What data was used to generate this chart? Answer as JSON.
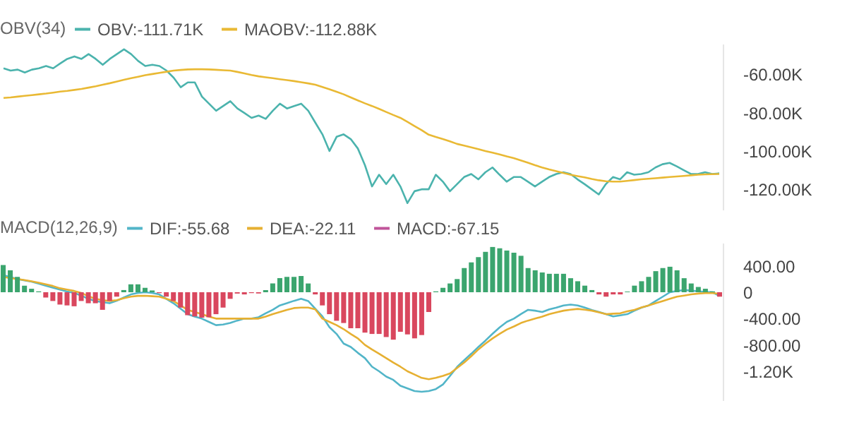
{
  "chart_data": [
    {
      "type": "line",
      "legend_title": "OBV(34)",
      "legend": "top left",
      "tick_labels": "y",
      "grid": false,
      "line_style": "solid",
      "categories": [
        null,
        null,
        null,
        null,
        null,
        null,
        null,
        null,
        null,
        null,
        null,
        null,
        null,
        null,
        null,
        null,
        null,
        null,
        null,
        null,
        null,
        null,
        null,
        null,
        null,
        null,
        null,
        null,
        null,
        null,
        null,
        null,
        null,
        null,
        null,
        null,
        null,
        null,
        null,
        null,
        null,
        null,
        null,
        null,
        null,
        null,
        null,
        null,
        null,
        null,
        null,
        null,
        null,
        null,
        null,
        null,
        null,
        null,
        null,
        null,
        null,
        null,
        null,
        null,
        null,
        null,
        null,
        null,
        null,
        null,
        null,
        null,
        null,
        null,
        null,
        null,
        null,
        null,
        null,
        null,
        null,
        null,
        null,
        null,
        null,
        null,
        null,
        null,
        null,
        null,
        null,
        null,
        null,
        null,
        null,
        null,
        null,
        null,
        null,
        null,
        null,
        null
      ],
      "ylim": [
        -131000,
        -44000
      ],
      "yticks": [
        {
          "value": -60000,
          "label": "-60.00K"
        },
        {
          "value": -80000,
          "label": "-80.00K"
        },
        {
          "value": -100000,
          "label": "-100.00K"
        },
        {
          "value": -120000,
          "label": "-120.00K"
        }
      ],
      "series": [
        {
          "name": "OBV:-111.71K",
          "color": "#4bb3ad",
          "values": [
            -56800,
            -58000,
            -57500,
            -59000,
            -57500,
            -56800,
            -55600,
            -56800,
            -54300,
            -51900,
            -50600,
            -51900,
            -49400,
            -51900,
            -55000,
            -51900,
            -49400,
            -46900,
            -49400,
            -53000,
            -55600,
            -55000,
            -55600,
            -58000,
            -61700,
            -66700,
            -64200,
            -64200,
            -71600,
            -75300,
            -79000,
            -76500,
            -74000,
            -77800,
            -80200,
            -82700,
            -81500,
            -83200,
            -79000,
            -75300,
            -77800,
            -76500,
            -75300,
            -79000,
            -85200,
            -91300,
            -100000,
            -92600,
            -91300,
            -93800,
            -98700,
            -107400,
            -118500,
            -112400,
            -117300,
            -112400,
            -118500,
            -127200,
            -121000,
            -120000,
            -120000,
            -112400,
            -116000,
            -121000,
            -117300,
            -113600,
            -112000,
            -114800,
            -111100,
            -108600,
            -112400,
            -116000,
            -113600,
            -113600,
            -116000,
            -118500,
            -116000,
            -113600,
            -112000,
            -111100,
            -112000,
            -114800,
            -117300,
            -120000,
            -122700,
            -117300,
            -113600,
            -114800,
            -111100,
            -112400,
            -112000,
            -111100,
            -108600,
            -106900,
            -106200,
            -108000,
            -110000,
            -112000,
            -112000,
            -111100,
            -112000,
            -111700
          ]
        },
        {
          "name": "MAOBV:-112.88K",
          "color": "#e9b934",
          "values": [
            -72300,
            -72000,
            -71600,
            -71200,
            -70800,
            -70400,
            -70000,
            -69500,
            -69000,
            -68600,
            -68100,
            -67600,
            -66900,
            -66200,
            -65400,
            -64600,
            -63700,
            -62800,
            -62000,
            -61200,
            -60400,
            -59800,
            -59200,
            -58600,
            -58000,
            -57700,
            -57400,
            -57300,
            -57300,
            -57400,
            -57600,
            -57800,
            -58000,
            -58700,
            -59500,
            -60300,
            -61000,
            -61500,
            -62000,
            -62500,
            -63000,
            -63500,
            -64100,
            -64700,
            -65400,
            -66600,
            -67800,
            -69100,
            -70400,
            -72000,
            -73600,
            -75100,
            -76500,
            -78000,
            -79600,
            -81200,
            -82700,
            -84800,
            -87000,
            -89100,
            -91500,
            -92700,
            -93800,
            -95000,
            -96300,
            -97200,
            -98100,
            -99000,
            -100000,
            -100900,
            -101800,
            -102800,
            -103700,
            -104900,
            -106100,
            -107400,
            -108600,
            -109600,
            -110500,
            -111500,
            -112400,
            -113100,
            -113800,
            -114600,
            -115300,
            -115800,
            -116000,
            -116000,
            -115600,
            -115200,
            -114800,
            -114500,
            -114200,
            -113900,
            -113600,
            -113300,
            -113000,
            -112700,
            -112400,
            -112200,
            -112100,
            -112000
          ]
        }
      ]
    },
    {
      "type": "bar",
      "legend_title": "MACD(12,26,9)",
      "legend": "top left",
      "tick_labels": "y",
      "grid": false,
      "line_style": "solid",
      "categories": [
        null,
        null,
        null,
        null,
        null,
        null,
        null,
        null,
        null,
        null,
        null,
        null,
        null,
        null,
        null,
        null,
        null,
        null,
        null,
        null,
        null,
        null,
        null,
        null,
        null,
        null,
        null,
        null,
        null,
        null,
        null,
        null,
        null,
        null,
        null,
        null,
        null,
        null,
        null,
        null,
        null,
        null,
        null,
        null,
        null,
        null,
        null,
        null,
        null,
        null,
        null,
        null,
        null,
        null,
        null,
        null,
        null,
        null,
        null,
        null,
        null,
        null,
        null,
        null,
        null,
        null,
        null,
        null,
        null,
        null,
        null,
        null,
        null,
        null,
        null,
        null,
        null,
        null,
        null,
        null,
        null,
        null,
        null,
        null,
        null,
        null,
        null,
        null,
        null,
        null,
        null,
        null,
        null,
        null,
        null,
        null,
        null,
        null,
        null,
        null,
        null,
        null
      ],
      "ylim": [
        -1650,
        750
      ],
      "yticks": [
        {
          "value": 400,
          "label": "400.00"
        },
        0,
        {
          "value": -400,
          "label": "-400.00"
        },
        {
          "value": -800,
          "label": "-800.00"
        },
        {
          "value": -1200,
          "label": "-1.20K"
        }
      ],
      "series": [
        {
          "name": "DIF:-55.68",
          "type": "line",
          "color": "#52b5c8",
          "values": [
            260,
            230,
            200,
            180,
            160,
            130,
            100,
            70,
            40,
            10,
            -10,
            -50,
            -100,
            -133,
            -150,
            -167,
            -130,
            -80,
            -33,
            -10,
            0,
            -10,
            -33,
            -100,
            -167,
            -250,
            -333,
            -370,
            -400,
            -450,
            -500,
            -490,
            -467,
            -430,
            -400,
            -400,
            -380,
            -320,
            -267,
            -200,
            -167,
            -130,
            -100,
            -133,
            -250,
            -367,
            -530,
            -633,
            -780,
            -830,
            -920,
            -1000,
            -1130,
            -1200,
            -1280,
            -1330,
            -1420,
            -1460,
            -1500,
            -1510,
            -1500,
            -1470,
            -1400,
            -1270,
            -1133,
            -1030,
            -933,
            -830,
            -733,
            -630,
            -533,
            -450,
            -400,
            -330,
            -267,
            -280,
            -300,
            -260,
            -233,
            -200,
            -187,
            -200,
            -233,
            -270,
            -300,
            -333,
            -367,
            -350,
            -333,
            -280,
            -233,
            -200,
            -133,
            -67,
            0,
            20,
            33,
            25,
            13,
            5,
            0,
            -56
          ]
        },
        {
          "name": "DEA:-22.11",
          "type": "line",
          "color": "#e6b032",
          "values": [
            233,
            215,
            200,
            185,
            167,
            145,
            120,
            95,
            60,
            40,
            20,
            -10,
            -60,
            -100,
            -120,
            -133,
            -120,
            -90,
            -67,
            -55,
            -53,
            -60,
            -67,
            -100,
            -133,
            -200,
            -267,
            -300,
            -333,
            -370,
            -400,
            -400,
            -400,
            -400,
            -400,
            -400,
            -400,
            -370,
            -333,
            -300,
            -267,
            -240,
            -233,
            -233,
            -260,
            -400,
            -450,
            -500,
            -560,
            -633,
            -700,
            -800,
            -870,
            -933,
            -1000,
            -1067,
            -1130,
            -1200,
            -1250,
            -1300,
            -1320,
            -1300,
            -1270,
            -1233,
            -1150,
            -1067,
            -970,
            -867,
            -780,
            -700,
            -630,
            -567,
            -520,
            -467,
            -430,
            -400,
            -370,
            -333,
            -305,
            -280,
            -265,
            -253,
            -265,
            -280,
            -305,
            -333,
            -325,
            -320,
            -290,
            -267,
            -230,
            -200,
            -167,
            -133,
            -100,
            -67,
            -50,
            -33,
            -20,
            -13,
            -13,
            -22
          ]
        },
        {
          "name": "MACD:-67.15",
          "type": "bar",
          "color": "#c0549a",
          "values": [
            413,
            333,
            233,
            100,
            53,
            13,
            -80,
            -133,
            -187,
            -200,
            -213,
            -133,
            -167,
            -167,
            -267,
            -133,
            -67,
            33,
            120,
            120,
            67,
            27,
            -13,
            -67,
            -133,
            -233,
            -347,
            -367,
            -387,
            -380,
            -333,
            -233,
            -100,
            -20,
            -33,
            -13,
            -20,
            33,
            133,
            213,
            233,
            233,
            247,
            133,
            -33,
            -200,
            -333,
            -433,
            -467,
            -547,
            -547,
            -613,
            -633,
            -633,
            -680,
            -720,
            -600,
            -640,
            -700,
            -650,
            -300,
            13,
            67,
            133,
            200,
            367,
            453,
            533,
            613,
            687,
            667,
            633,
            600,
            553,
            367,
            333,
            300,
            280,
            280,
            280,
            213,
            167,
            100,
            33,
            -33,
            -67,
            -33,
            -33,
            10,
            100,
            167,
            233,
            320,
            367,
            387,
            333,
            213,
            133,
            80,
            53,
            13,
            -67
          ],
          "colors": [
            "#3ba56e",
            "#3ba56e",
            "#3ba56e",
            "#3ba56e",
            "#3ba56e",
            "#3ba56e",
            "#d9475e",
            "#d9475e",
            "#d9475e",
            "#d9475e",
            "#d9475e",
            "#d9475e",
            "#d9475e",
            "#d9475e",
            "#d9475e",
            "#d9475e",
            "#d9475e",
            "#3ba56e",
            "#3ba56e",
            "#3ba56e",
            "#3ba56e",
            "#3ba56e",
            "#d9475e",
            "#d9475e",
            "#d9475e",
            "#d9475e",
            "#d9475e",
            "#d9475e",
            "#d9475e",
            "#d9475e",
            "#d9475e",
            "#d9475e",
            "#d9475e",
            "#d9475e",
            "#d9475e",
            "#d9475e",
            "#d9475e",
            "#3ba56e",
            "#3ba56e",
            "#3ba56e",
            "#3ba56e",
            "#3ba56e",
            "#3ba56e",
            "#3ba56e",
            "#d9475e",
            "#d9475e",
            "#d9475e",
            "#d9475e",
            "#d9475e",
            "#d9475e",
            "#d9475e",
            "#d9475e",
            "#d9475e",
            "#d9475e",
            "#d9475e",
            "#d9475e",
            "#d9475e",
            "#d9475e",
            "#d9475e",
            "#d9475e",
            "#d9475e",
            "#3ba56e",
            "#3ba56e",
            "#3ba56e",
            "#3ba56e",
            "#3ba56e",
            "#3ba56e",
            "#3ba56e",
            "#3ba56e",
            "#3ba56e",
            "#3ba56e",
            "#3ba56e",
            "#3ba56e",
            "#3ba56e",
            "#3ba56e",
            "#3ba56e",
            "#3ba56e",
            "#3ba56e",
            "#3ba56e",
            "#3ba56e",
            "#3ba56e",
            "#3ba56e",
            "#3ba56e",
            "#3ba56e",
            "#d9475e",
            "#d9475e",
            "#d9475e",
            "#d9475e",
            "#3ba56e",
            "#3ba56e",
            "#3ba56e",
            "#3ba56e",
            "#3ba56e",
            "#3ba56e",
            "#3ba56e",
            "#3ba56e",
            "#3ba56e",
            "#3ba56e",
            "#3ba56e",
            "#3ba56e",
            "#3ba56e",
            "#d9475e"
          ]
        }
      ]
    }
  ]
}
